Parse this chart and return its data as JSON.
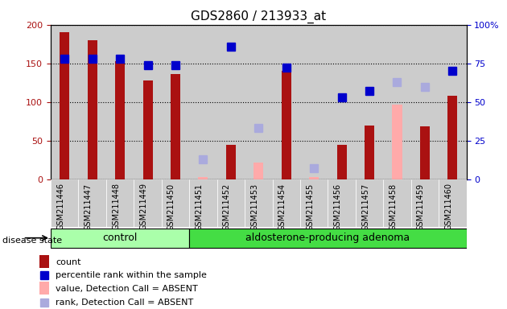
{
  "title": "GDS2860 / 213933_at",
  "samples": [
    "GSM211446",
    "GSM211447",
    "GSM211448",
    "GSM211449",
    "GSM211450",
    "GSM211451",
    "GSM211452",
    "GSM211453",
    "GSM211454",
    "GSM211455",
    "GSM211456",
    "GSM211457",
    "GSM211458",
    "GSM211459",
    "GSM211460"
  ],
  "groups": {
    "control": [
      "GSM211446",
      "GSM211447",
      "GSM211448",
      "GSM211449",
      "GSM211450"
    ],
    "adenoma": [
      "GSM211451",
      "GSM211452",
      "GSM211453",
      "GSM211454",
      "GSM211455",
      "GSM211456",
      "GSM211457",
      "GSM211458",
      "GSM211459",
      "GSM211460"
    ]
  },
  "count": {
    "GSM211446": 190,
    "GSM211447": 180,
    "GSM211448": 153,
    "GSM211449": 128,
    "GSM211450": 136,
    "GSM211451": null,
    "GSM211452": 45,
    "GSM211453": null,
    "GSM211454": 140,
    "GSM211455": null,
    "GSM211456": 45,
    "GSM211457": 70,
    "GSM211458": null,
    "GSM211459": 68,
    "GSM211460": 108
  },
  "count_absent": {
    "GSM211451": 3,
    "GSM211453": 22,
    "GSM211455": 3,
    "GSM211458": 97
  },
  "percentile_rank": {
    "GSM211446": 78,
    "GSM211447": 78,
    "GSM211448": 78,
    "GSM211449": 74,
    "GSM211450": 74,
    "GSM211452": 86,
    "GSM211454": 72,
    "GSM211456": 53,
    "GSM211457": 57,
    "GSM211460": 70
  },
  "rank_absent": {
    "GSM211451": 13,
    "GSM211453": 33,
    "GSM211455": 7,
    "GSM211458": 63,
    "GSM211459": 60
  },
  "ylim_left": [
    0,
    200
  ],
  "ylim_right": [
    0,
    100
  ],
  "yticks_left": [
    0,
    50,
    100,
    150,
    200
  ],
  "yticks_right": [
    0,
    25,
    50,
    75,
    100
  ],
  "color_count": "#aa1111",
  "color_percentile": "#0000cc",
  "color_count_absent": "#ffaaaa",
  "color_rank_absent": "#aaaadd",
  "group_control_color": "#aaffaa",
  "group_adenoma_color": "#44dd44",
  "bar_bg_color": "#cccccc",
  "legend_items": [
    "count",
    "percentile rank within the sample",
    "value, Detection Call = ABSENT",
    "rank, Detection Call = ABSENT"
  ]
}
